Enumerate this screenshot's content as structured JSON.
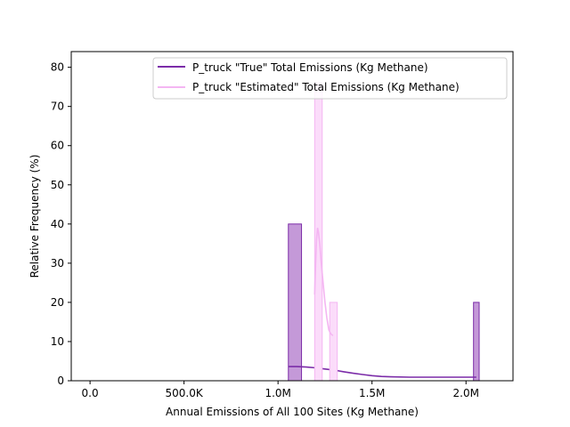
{
  "chart_data": {
    "type": "histogram",
    "xlabel": "Annual Emissions of All 100 Sites (Kg Methane)",
    "ylabel": "Relative Frequency (%)",
    "xlim": [
      -100000,
      2250000
    ],
    "ylim": [
      0,
      84
    ],
    "x_ticks": [
      {
        "value": 0,
        "label": "0.0"
      },
      {
        "value": 500000,
        "label": "500.0K"
      },
      {
        "value": 1000000,
        "label": "1.0M"
      },
      {
        "value": 1500000,
        "label": "1.5M"
      },
      {
        "value": 2000000,
        "label": "2.0M"
      }
    ],
    "y_ticks": [
      0,
      10,
      20,
      30,
      40,
      50,
      60,
      70,
      80
    ],
    "legend_position": "upper-right",
    "series": [
      {
        "name": "P_truck \"True\" Total Emissions (Kg Methane)",
        "color": "#7b2ca8",
        "fill": "#c499d8",
        "bins": [
          {
            "x0": 1055000,
            "x1": 1125000,
            "value": 40
          },
          {
            "x0": 2040000,
            "x1": 2070000,
            "value": 20
          }
        ],
        "kde": [
          [
            1055000,
            3.6
          ],
          [
            1100000,
            3.6
          ],
          [
            1150000,
            3.5
          ],
          [
            1200000,
            3.3
          ],
          [
            1250000,
            3.0
          ],
          [
            1300000,
            2.7
          ],
          [
            1350000,
            2.3
          ],
          [
            1400000,
            1.9
          ],
          [
            1450000,
            1.6
          ],
          [
            1500000,
            1.3
          ],
          [
            1550000,
            1.1
          ],
          [
            1600000,
            1.0
          ],
          [
            1700000,
            0.9
          ],
          [
            1800000,
            0.9
          ],
          [
            1900000,
            0.9
          ],
          [
            2000000,
            0.9
          ],
          [
            2055000,
            0.9
          ]
        ]
      },
      {
        "name": "P_truck \"Estimated\" Total Emissions (Kg Methane)",
        "color": "#f4b6f2",
        "fill": "#fbdcfa",
        "bins": [
          {
            "x0": 1195000,
            "x1": 1235000,
            "value": 76
          },
          {
            "x0": 1275000,
            "x1": 1315000,
            "value": 20
          }
        ],
        "kde": [
          [
            1195000,
            22
          ],
          [
            1200000,
            30
          ],
          [
            1205000,
            36
          ],
          [
            1210000,
            39
          ],
          [
            1215000,
            38
          ],
          [
            1222000,
            35
          ],
          [
            1230000,
            30
          ],
          [
            1240000,
            25
          ],
          [
            1250000,
            20
          ],
          [
            1260000,
            16
          ],
          [
            1270000,
            13
          ],
          [
            1280000,
            12
          ],
          [
            1292000,
            11.5
          ]
        ]
      }
    ]
  }
}
